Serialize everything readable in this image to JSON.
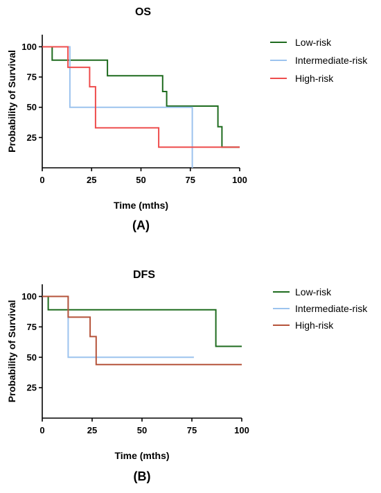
{
  "chart_data": [
    {
      "type": "line",
      "title": "OS",
      "panel_label": "(A)",
      "xlabel": "Time (mths)",
      "ylabel": "Probability of Survival",
      "xlim": [
        0,
        100
      ],
      "ylim": [
        0,
        110
      ],
      "xticks": [
        0,
        25,
        50,
        75,
        100
      ],
      "yticks": [
        25,
        50,
        75,
        100
      ],
      "legend_position": "right",
      "series": [
        {
          "name": "Low-risk",
          "color": "#1e6b1e",
          "x": [
            0,
            5,
            5,
            33,
            33,
            61,
            61,
            63,
            63,
            89,
            89,
            91,
            91,
            100
          ],
          "y": [
            100,
            100,
            89,
            89,
            76,
            76,
            63,
            63,
            51,
            51,
            34,
            34,
            17,
            17
          ]
        },
        {
          "name": "Intermediate-risk",
          "color": "#9cc3ee",
          "x": [
            0,
            14,
            14,
            76,
            76
          ],
          "y": [
            100,
            100,
            50,
            50,
            0
          ]
        },
        {
          "name": "High-risk",
          "color": "#ee4c4c",
          "x": [
            0,
            13,
            13,
            24,
            24,
            27,
            27,
            59,
            59,
            100
          ],
          "y": [
            100,
            100,
            83,
            83,
            67,
            67,
            33,
            33,
            17,
            17
          ]
        }
      ]
    },
    {
      "type": "line",
      "title": "DFS",
      "panel_label": "(B)",
      "xlabel": "Time (mths)",
      "ylabel": "Probability of Survival",
      "xlim": [
        0,
        100
      ],
      "ylim": [
        0,
        110
      ],
      "xticks": [
        0,
        25,
        50,
        75,
        100
      ],
      "yticks": [
        25,
        50,
        75,
        100
      ],
      "legend_position": "right",
      "series": [
        {
          "name": "Low-risk",
          "color": "#1e6b1e",
          "x": [
            0,
            3,
            3,
            87,
            87,
            100
          ],
          "y": [
            100,
            100,
            89,
            89,
            59,
            59
          ]
        },
        {
          "name": "Intermediate-risk",
          "color": "#9cc3ee",
          "x": [
            0,
            13,
            13,
            76
          ],
          "y": [
            100,
            100,
            50,
            50
          ]
        },
        {
          "name": "High-risk",
          "color": "#b5533a",
          "x": [
            0,
            13,
            13,
            24,
            24,
            27,
            27,
            100
          ],
          "y": [
            100,
            100,
            83,
            83,
            67,
            67,
            44,
            44
          ]
        }
      ]
    }
  ]
}
